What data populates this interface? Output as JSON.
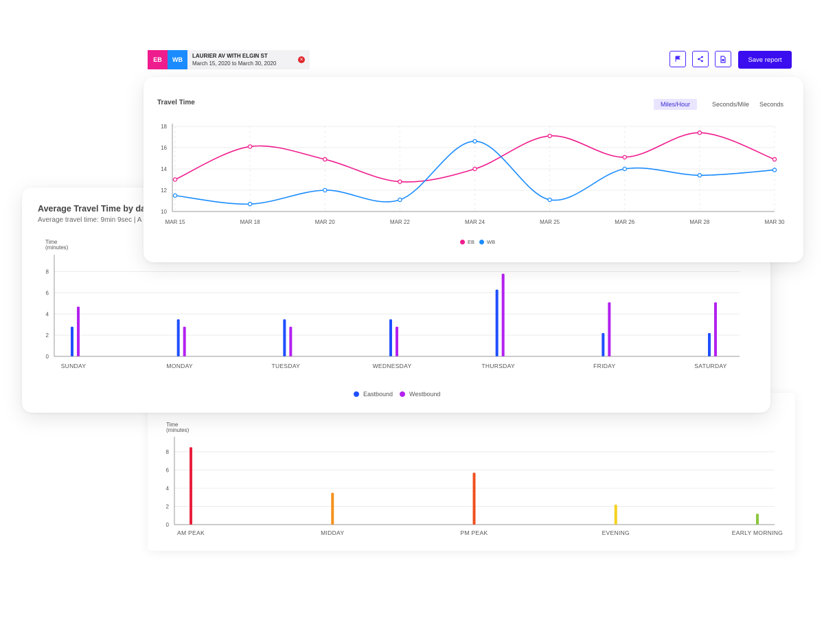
{
  "header": {
    "tags": [
      {
        "label": "EB",
        "color": "#ef1c8e"
      },
      {
        "label": "WB",
        "color": "#1a8cff"
      }
    ],
    "location": "LAURIER AV WITH ELGIN ST",
    "date_range": "March 15, 2020 to March 30, 2020",
    "close_icon": "close-circle-icon",
    "icons": [
      "flag-icon",
      "share-icon",
      "document-icon"
    ],
    "save_label": "Save report"
  },
  "travel_time": {
    "title": "Travel Time",
    "units": [
      "Miles/Hour",
      "Seconds/Mile",
      "Seconds"
    ],
    "active_unit": "Miles/Hour",
    "legend": [
      "EB",
      "WB"
    ]
  },
  "day_card": {
    "title": "Average Travel Time by day",
    "subtitle": "Average travel time: 9min 9sec | A",
    "legend": [
      "Eastbound",
      "Westbound"
    ]
  },
  "chart_data": [
    {
      "type": "line",
      "title": "Travel Time",
      "categories": [
        "MAR 15",
        "MAR 18",
        "MAR 20",
        "MAR 22",
        "MAR 24",
        "MAR 25",
        "MAR 26",
        "MAR 28",
        "MAR 30"
      ],
      "series": [
        {
          "name": "EB",
          "color": "#ef1c8e",
          "values": [
            13.0,
            16.1,
            14.9,
            12.8,
            14.0,
            17.1,
            15.1,
            17.4,
            14.9
          ]
        },
        {
          "name": "WB",
          "color": "#1a8cff",
          "values": [
            11.5,
            10.7,
            12.0,
            11.1,
            16.6,
            11.1,
            14.0,
            13.4,
            13.9
          ]
        }
      ],
      "yticks": [
        10,
        12,
        14,
        16,
        18
      ],
      "ylim": [
        10,
        18
      ],
      "grid": true,
      "legend_position": "bottom"
    },
    {
      "type": "bar",
      "title": "Average Travel Time by day",
      "ylabel": "Time (minutes)",
      "categories": [
        "SUNDAY",
        "MONDAY",
        "TUESDAY",
        "WEDNESDAY",
        "THURSDAY",
        "FRIDAY",
        "SATURDAY"
      ],
      "series": [
        {
          "name": "Eastbound",
          "color": "#1f4fff",
          "values": [
            2.8,
            3.5,
            3.5,
            3.5,
            6.3,
            2.2,
            2.2
          ]
        },
        {
          "name": "Westbound",
          "color": "#b321f0",
          "values": [
            4.7,
            2.8,
            2.8,
            2.8,
            7.8,
            5.1,
            5.1
          ]
        }
      ],
      "yticks": [
        0,
        2,
        4,
        6,
        8
      ],
      "ylim": [
        0,
        9.2
      ],
      "grid": true,
      "legend_position": "bottom"
    },
    {
      "type": "bar",
      "ylabel": "Time (minutes)",
      "categories": [
        "AM PEAK",
        "MIDDAY",
        "PM PEAK",
        "EVENING",
        "EARLY MORNING"
      ],
      "values": [
        8.5,
        3.5,
        5.7,
        2.2,
        1.2
      ],
      "colors": [
        "#e8203c",
        "#f5921e",
        "#f0501e",
        "#f5d21e",
        "#8cc63f"
      ],
      "yticks": [
        0,
        2,
        4,
        6,
        8
      ],
      "ylim": [
        0,
        9.2
      ],
      "grid": true
    }
  ]
}
